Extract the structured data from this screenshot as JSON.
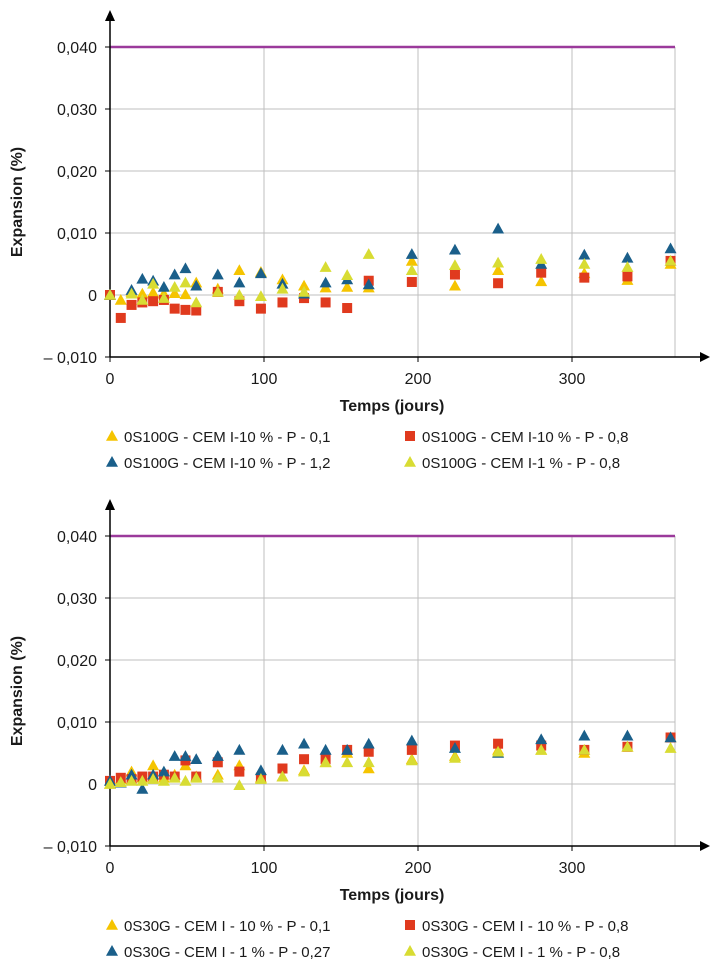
{
  "chart_data": [
    {
      "type": "scatter",
      "title": "",
      "xlabel": "Temps (jours)",
      "ylabel": "Expansion (%)",
      "xlim": [
        0,
        365
      ],
      "ylim": [
        -0.01,
        0.045
      ],
      "x_ticks": [
        {
          "value": 0,
          "label": "0"
        },
        {
          "value": 100,
          "label": "100"
        },
        {
          "value": 200,
          "label": "200"
        },
        {
          "value": 300,
          "label": "300"
        }
      ],
      "y_ticks": [
        {
          "value": -0.01,
          "label": "– 0,010"
        },
        {
          "value": 0,
          "label": "0"
        },
        {
          "value": 0.01,
          "label": "0,010"
        },
        {
          "value": 0.02,
          "label": "0,020"
        },
        {
          "value": 0.03,
          "label": "0,030"
        },
        {
          "value": 0.04,
          "label": "0,040"
        }
      ],
      "grid": true,
      "legend_position": "bottom",
      "threshold": {
        "value": 0.04,
        "color": "#9b3a9b"
      },
      "series": [
        {
          "name": "0S100G - CEM I-10 % - P - 0,1",
          "marker": "triangle",
          "color": "#f5c400",
          "points": [
            [
              0,
              0
            ],
            [
              7,
              -0.0008
            ],
            [
              14,
              0.0005
            ],
            [
              21,
              0.0002
            ],
            [
              28,
              0.0004
            ],
            [
              35,
              0.0002
            ],
            [
              42,
              0.0003
            ],
            [
              49,
              0.0001
            ],
            [
              56,
              0.002
            ],
            [
              70,
              0.001
            ],
            [
              84,
              0.004
            ],
            [
              98,
              0.0037
            ],
            [
              112,
              0.0025
            ],
            [
              126,
              0.0015
            ],
            [
              140,
              0.0012
            ],
            [
              154,
              0.0013
            ],
            [
              168,
              0.0012
            ],
            [
              196,
              0.0055
            ],
            [
              224,
              0.0015
            ],
            [
              252,
              0.004
            ],
            [
              280,
              0.0022
            ],
            [
              308,
              0.0035
            ],
            [
              336,
              0.0024
            ],
            [
              364,
              0.005
            ]
          ]
        },
        {
          "name": "0S100G - CEM I-10 % - P - 0,8",
          "marker": "square",
          "color": "#e03a1e",
          "points": [
            [
              0,
              0
            ],
            [
              7,
              -0.0037
            ],
            [
              14,
              -0.0016
            ],
            [
              21,
              -0.0012
            ],
            [
              28,
              -0.001
            ],
            [
              35,
              -0.0008
            ],
            [
              42,
              -0.0022
            ],
            [
              49,
              -0.0024
            ],
            [
              56,
              -0.0025
            ],
            [
              70,
              0.0005
            ],
            [
              84,
              -0.001
            ],
            [
              98,
              -0.0022
            ],
            [
              112,
              -0.0012
            ],
            [
              126,
              -0.0005
            ],
            [
              140,
              -0.0012
            ],
            [
              154,
              -0.0021
            ],
            [
              168,
              0.0023
            ],
            [
              196,
              0.0021
            ],
            [
              224,
              0.0033
            ],
            [
              252,
              0.0019
            ],
            [
              280,
              0.0036
            ],
            [
              308,
              0.0028
            ],
            [
              336,
              0.003
            ],
            [
              364,
              0.0055
            ]
          ]
        },
        {
          "name": "0S100G - CEM I-10 % - P - 1,2",
          "marker": "triangle",
          "color": "#1a5f8a",
          "points": [
            [
              0,
              0
            ],
            [
              14,
              0.0008
            ],
            [
              21,
              0.0026
            ],
            [
              28,
              0.0023
            ],
            [
              35,
              0.0013
            ],
            [
              42,
              0.0033
            ],
            [
              49,
              0.0043
            ],
            [
              56,
              0.0015
            ],
            [
              70,
              0.0033
            ],
            [
              84,
              0.002
            ],
            [
              98,
              0.0035
            ],
            [
              112,
              0.0018
            ],
            [
              126,
              0.0002
            ],
            [
              140,
              0.002
            ],
            [
              154,
              0.0025
            ],
            [
              168,
              0.0017
            ],
            [
              196,
              0.0066
            ],
            [
              224,
              0.0073
            ],
            [
              252,
              0.0107
            ],
            [
              280,
              0.005
            ],
            [
              308,
              0.0065
            ],
            [
              336,
              0.006
            ],
            [
              364,
              0.0075
            ]
          ]
        },
        {
          "name": "0S100G - CEM I-1 % - P - 0,8",
          "marker": "triangle",
          "color": "#d8dc33",
          "points": [
            [
              0,
              0
            ],
            [
              14,
              0.0002
            ],
            [
              21,
              -0.0008
            ],
            [
              28,
              0.0018
            ],
            [
              35,
              -0.0005
            ],
            [
              42,
              0.0013
            ],
            [
              49,
              0.002
            ],
            [
              56,
              -0.0012
            ],
            [
              70,
              0.0005
            ],
            [
              84,
              0.0
            ],
            [
              98,
              -0.0002
            ],
            [
              112,
              0.001
            ],
            [
              126,
              0.0005
            ],
            [
              140,
              0.0045
            ],
            [
              154,
              0.0032
            ],
            [
              168,
              0.0066
            ],
            [
              196,
              0.004
            ],
            [
              224,
              0.0048
            ],
            [
              252,
              0.0052
            ],
            [
              280,
              0.0058
            ],
            [
              308,
              0.005
            ],
            [
              336,
              0.0045
            ],
            [
              364,
              0.0055
            ]
          ]
        }
      ]
    },
    {
      "type": "scatter",
      "title": "",
      "xlabel": "Temps (jours)",
      "ylabel": "Expansion (%)",
      "xlim": [
        0,
        365
      ],
      "ylim": [
        -0.01,
        0.045
      ],
      "x_ticks": [
        {
          "value": 0,
          "label": "0"
        },
        {
          "value": 100,
          "label": "100"
        },
        {
          "value": 200,
          "label": "200"
        },
        {
          "value": 300,
          "label": "300"
        }
      ],
      "y_ticks": [
        {
          "value": -0.01,
          "label": "– 0,010"
        },
        {
          "value": 0,
          "label": "0"
        },
        {
          "value": 0.01,
          "label": "0,010"
        },
        {
          "value": 0.02,
          "label": "0,020"
        },
        {
          "value": 0.03,
          "label": "0,030"
        },
        {
          "value": 0.04,
          "label": "0,040"
        }
      ],
      "grid": true,
      "legend_position": "bottom",
      "threshold": {
        "value": 0.04,
        "color": "#9b3a9b"
      },
      "series": [
        {
          "name": "0S30G - CEM I - 10 % - P - 0,1",
          "marker": "triangle",
          "color": "#f5c400",
          "points": [
            [
              0,
              0
            ],
            [
              7,
              0.0008
            ],
            [
              14,
              0.002
            ],
            [
              21,
              0.001
            ],
            [
              28,
              0.003
            ],
            [
              35,
              0.001
            ],
            [
              42,
              0.0015
            ],
            [
              49,
              0.003
            ],
            [
              56,
              0.0012
            ],
            [
              70,
              0.0015
            ],
            [
              84,
              0.003
            ],
            [
              98,
              0.001
            ],
            [
              112,
              0.0012
            ],
            [
              126,
              0.0022
            ],
            [
              140,
              0.0035
            ],
            [
              154,
              0.005
            ],
            [
              168,
              0.0025
            ],
            [
              196,
              0.004
            ],
            [
              224,
              0.0045
            ],
            [
              252,
              0.0055
            ],
            [
              280,
              0.0055
            ],
            [
              308,
              0.005
            ],
            [
              336,
              0.006
            ],
            [
              364,
              0.0075
            ]
          ]
        },
        {
          "name": "0S30G - CEM I - 10 % - P - 0,8",
          "marker": "square",
          "color": "#e03a1e",
          "points": [
            [
              0,
              0.0005
            ],
            [
              7,
              0.001
            ],
            [
              14,
              0.0008
            ],
            [
              21,
              0.0012
            ],
            [
              28,
              0.0012
            ],
            [
              35,
              0.0015
            ],
            [
              42,
              0.0012
            ],
            [
              49,
              0.0038
            ],
            [
              56,
              0.0012
            ],
            [
              70,
              0.0035
            ],
            [
              84,
              0.002
            ],
            [
              98,
              0.001
            ],
            [
              112,
              0.0025
            ],
            [
              126,
              0.004
            ],
            [
              140,
              0.004
            ],
            [
              154,
              0.0055
            ],
            [
              168,
              0.0052
            ],
            [
              196,
              0.0055
            ],
            [
              224,
              0.0062
            ],
            [
              252,
              0.0065
            ],
            [
              280,
              0.0062
            ],
            [
              308,
              0.0055
            ],
            [
              336,
              0.006
            ],
            [
              364,
              0.0075
            ]
          ]
        },
        {
          "name": "0S30G - CEM I - 1 % - P - 0,27",
          "marker": "triangle",
          "color": "#1a5f8a",
          "points": [
            [
              0,
              0.0005
            ],
            [
              7,
              0.0002
            ],
            [
              14,
              0.0015
            ],
            [
              21,
              -0.0008
            ],
            [
              28,
              0.0015
            ],
            [
              35,
              0.002
            ],
            [
              42,
              0.0045
            ],
            [
              49,
              0.0045
            ],
            [
              56,
              0.004
            ],
            [
              70,
              0.0045
            ],
            [
              84,
              0.0055
            ],
            [
              98,
              0.0022
            ],
            [
              112,
              0.0055
            ],
            [
              126,
              0.0065
            ],
            [
              140,
              0.0055
            ],
            [
              154,
              0.0055
            ],
            [
              168,
              0.0065
            ],
            [
              196,
              0.007
            ],
            [
              224,
              0.0058
            ],
            [
              252,
              0.005
            ],
            [
              280,
              0.0072
            ],
            [
              308,
              0.0078
            ],
            [
              336,
              0.0078
            ],
            [
              364,
              0.0075
            ]
          ]
        },
        {
          "name": "0S30G - CEM I - 1 % - P - 0,8",
          "marker": "triangle",
          "color": "#d8dc33",
          "points": [
            [
              0,
              0
            ],
            [
              7,
              0.0003
            ],
            [
              14,
              0.0005
            ],
            [
              21,
              0.0005
            ],
            [
              28,
              0.0008
            ],
            [
              35,
              0.0005
            ],
            [
              42,
              0.001
            ],
            [
              49,
              0.0005
            ],
            [
              56,
              0.001
            ],
            [
              70,
              0.001
            ],
            [
              84,
              -0.0002
            ],
            [
              98,
              0.0008
            ],
            [
              112,
              0.0012
            ],
            [
              126,
              0.002
            ],
            [
              140,
              0.0035
            ],
            [
              154,
              0.0035
            ],
            [
              168,
              0.0035
            ],
            [
              196,
              0.0038
            ],
            [
              224,
              0.0042
            ],
            [
              252,
              0.0052
            ],
            [
              280,
              0.0055
            ],
            [
              308,
              0.0055
            ],
            [
              336,
              0.006
            ],
            [
              364,
              0.0058
            ]
          ]
        }
      ]
    }
  ]
}
